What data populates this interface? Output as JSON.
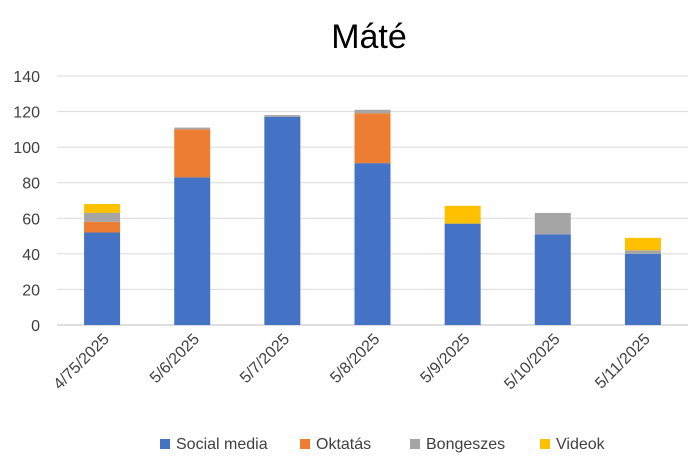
{
  "chart_data": {
    "type": "bar",
    "stacked": true,
    "title": "Máté",
    "xlabel": "",
    "ylabel": "",
    "ylim": [
      0,
      140
    ],
    "y_ticks": [
      "0",
      "20",
      "40",
      "60",
      "80",
      "100",
      "120",
      "140"
    ],
    "grid": true,
    "legend_position": "bottom",
    "categories": [
      "4/75/2025",
      "5/6/2025",
      "5/7/2025",
      "5/8/2025",
      "5/9/2025",
      "5/10/2025",
      "5/11/2025"
    ],
    "series": [
      {
        "name": "Social media",
        "color": "#4472C4",
        "values": [
          52,
          83,
          117,
          91,
          57,
          51,
          40
        ]
      },
      {
        "name": "Oktatás",
        "color": "#ED7D31",
        "values": [
          6,
          27,
          0,
          28,
          0,
          0,
          0
        ]
      },
      {
        "name": "Bongeszes",
        "color": "#A5A5A5",
        "values": [
          5,
          1,
          1,
          2,
          0,
          12,
          2
        ]
      },
      {
        "name": "Videok",
        "color": "#FFC000",
        "values": [
          5,
          0,
          0,
          0,
          10,
          0,
          7
        ]
      }
    ]
  }
}
